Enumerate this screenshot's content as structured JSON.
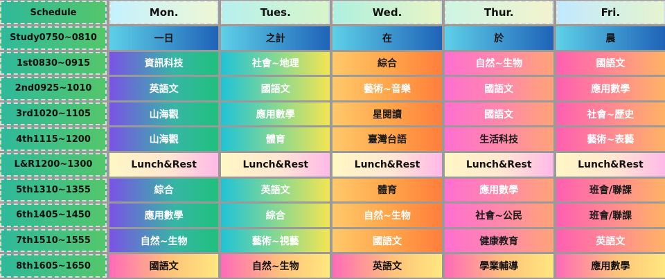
{
  "header": {
    "corner": "Schedule",
    "days": [
      "Mon.",
      "Tues.",
      "Wed.",
      "Thur.",
      "Fri."
    ]
  },
  "rows": [
    {
      "time": "Study0750~0810",
      "cells": [
        "一日",
        "之計",
        "在",
        "於",
        "晨"
      ]
    },
    {
      "time": "1st0830~0915",
      "cells": [
        "資訊科技",
        "社會~地理",
        "綜合",
        "自然~生物",
        "國語文"
      ]
    },
    {
      "time": "2nd0925~1010",
      "cells": [
        "英語文",
        "國語文",
        "藝術~音樂",
        "國語文",
        "應用數學"
      ]
    },
    {
      "time": "3rd1020~1105",
      "cells": [
        "山海觀",
        "應用數學",
        "星閱讀",
        "國語文",
        "社會~歷史"
      ]
    },
    {
      "time": "4th1115~1200",
      "cells": [
        "山海觀",
        "體育",
        "臺灣台語",
        "生活科技",
        "藝術~表藝"
      ]
    },
    {
      "time": "L&R1200~1300",
      "cells": [
        "Lunch&Rest",
        "Lunch&Rest",
        "Lunch&Rest",
        "Lunch&Rest",
        "Lunch&Rest"
      ]
    },
    {
      "time": "5th1310~1355",
      "cells": [
        "綜合",
        "英語文",
        "體育",
        "應用數學",
        "班會/聯課"
      ]
    },
    {
      "time": "6th1405~1450",
      "cells": [
        "應用數學",
        "綜合",
        "自然~生物",
        "社會~公民",
        "班會/聯課"
      ]
    },
    {
      "time": "7th1510~1555",
      "cells": [
        "自然~生物",
        "藝術~視藝",
        "國語文",
        "健康教育",
        "英語文"
      ]
    },
    {
      "time": "8th1605~1650",
      "cells": [
        "國語文",
        "自然~生物",
        "英語文",
        "學業輔導",
        "應用數學"
      ]
    }
  ]
}
